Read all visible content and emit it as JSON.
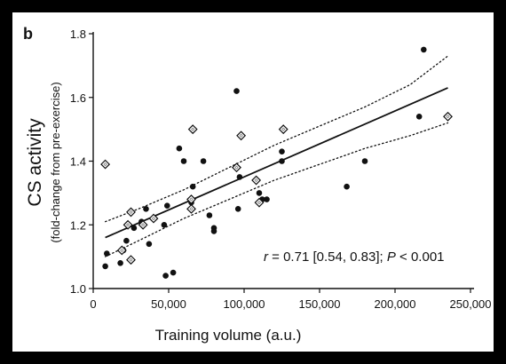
{
  "panel_label": "b",
  "chart_data": {
    "type": "scatter",
    "xlabel": "Training volume (a.u.)",
    "ylabel": "CS activity",
    "ylabel_sub": "(fold-change from pre-exercise)",
    "xlim": [
      0,
      250000
    ],
    "ylim": [
      1.0,
      1.8
    ],
    "x_ticks": [
      0,
      50000,
      100000,
      150000,
      200000,
      250000
    ],
    "x_tick_labels": [
      "0",
      "50,000",
      "100,000",
      "150,000",
      "200,000",
      "250,000"
    ],
    "y_ticks": [
      1.0,
      1.2,
      1.4,
      1.6,
      1.8
    ],
    "y_tick_labels": [
      "1.0",
      "1.2",
      "1.4",
      "1.6",
      "1.8"
    ],
    "grid": false,
    "annotation": {
      "r_symbol": "r",
      "r_text": " = 0.71 [0.54, 0.83]; ",
      "p_symbol": "P",
      "p_text": " < 0.001"
    },
    "regression": {
      "line": [
        [
          8000,
          1.16
        ],
        [
          235000,
          1.63
        ]
      ],
      "ci_upper": [
        [
          8000,
          1.21
        ],
        [
          30000,
          1.25
        ],
        [
          60000,
          1.31
        ],
        [
          90000,
          1.38
        ],
        [
          120000,
          1.45
        ],
        [
          150000,
          1.51
        ],
        [
          180000,
          1.57
        ],
        [
          210000,
          1.64
        ],
        [
          235000,
          1.73
        ]
      ],
      "ci_lower": [
        [
          8000,
          1.1
        ],
        [
          30000,
          1.15
        ],
        [
          60000,
          1.22
        ],
        [
          90000,
          1.28
        ],
        [
          120000,
          1.34
        ],
        [
          150000,
          1.39
        ],
        [
          180000,
          1.44
        ],
        [
          210000,
          1.48
        ],
        [
          235000,
          1.52
        ]
      ]
    },
    "series": [
      {
        "marker": "filled-circle",
        "points": [
          [
            8000,
            1.07
          ],
          [
            9000,
            1.11
          ],
          [
            18000,
            1.08
          ],
          [
            20000,
            1.12
          ],
          [
            22000,
            1.15
          ],
          [
            27000,
            1.19
          ],
          [
            32000,
            1.21
          ],
          [
            35000,
            1.25
          ],
          [
            37000,
            1.14
          ],
          [
            47000,
            1.2
          ],
          [
            48000,
            1.04
          ],
          [
            49000,
            1.26
          ],
          [
            53000,
            1.05
          ],
          [
            57000,
            1.44
          ],
          [
            60000,
            1.4
          ],
          [
            65000,
            1.27
          ],
          [
            66000,
            1.32
          ],
          [
            73000,
            1.4
          ],
          [
            77000,
            1.23
          ],
          [
            80000,
            1.19
          ],
          [
            80000,
            1.18
          ],
          [
            95000,
            1.62
          ],
          [
            96000,
            1.25
          ],
          [
            97000,
            1.35
          ],
          [
            110000,
            1.3
          ],
          [
            112000,
            1.28
          ],
          [
            115000,
            1.28
          ],
          [
            125000,
            1.4
          ],
          [
            125000,
            1.43
          ],
          [
            168000,
            1.32
          ],
          [
            180000,
            1.4
          ],
          [
            216000,
            1.54
          ],
          [
            219000,
            1.75
          ]
        ]
      },
      {
        "marker": "open-diamond",
        "points": [
          [
            8000,
            1.39
          ],
          [
            19000,
            1.12
          ],
          [
            23000,
            1.2
          ],
          [
            25000,
            1.24
          ],
          [
            25000,
            1.09
          ],
          [
            33000,
            1.2
          ],
          [
            40000,
            1.22
          ],
          [
            65000,
            1.28
          ],
          [
            65000,
            1.25
          ],
          [
            66000,
            1.5
          ],
          [
            95000,
            1.38
          ],
          [
            98000,
            1.48
          ],
          [
            108000,
            1.34
          ],
          [
            110000,
            1.27
          ],
          [
            126000,
            1.5
          ],
          [
            235000,
            1.54
          ]
        ]
      }
    ]
  }
}
